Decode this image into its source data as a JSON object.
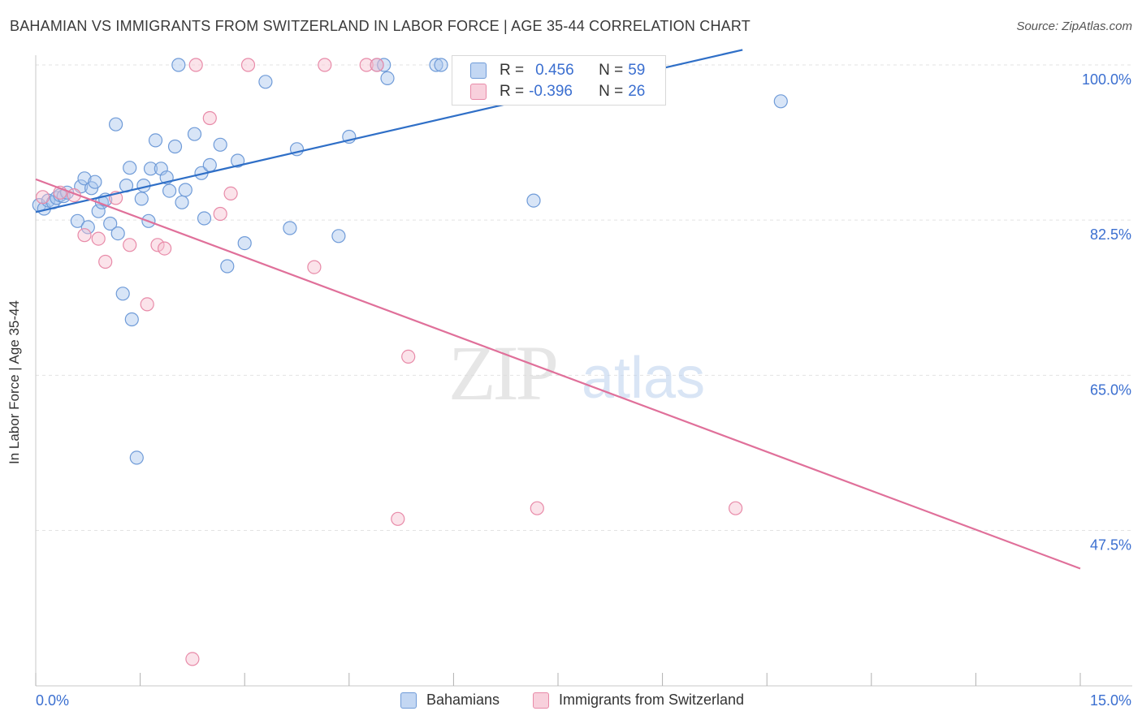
{
  "title": "BAHAMIAN VS IMMIGRANTS FROM SWITZERLAND IN LABOR FORCE | AGE 35-44 CORRELATION CHART",
  "source": "Source: ZipAtlas.com",
  "watermark": {
    "zip": "ZIP",
    "atlas": "atlas"
  },
  "stats": {
    "series1": {
      "r_label": "R =",
      "r_value": "0.456",
      "n_label": "N =",
      "n_value": "59"
    },
    "series2": {
      "r_label": "R =",
      "r_value": "-0.396",
      "n_label": "N =",
      "n_value": "26"
    }
  },
  "colors": {
    "blue_fill": "#a9c6ee",
    "blue_stroke": "#6f9bd8",
    "blue_line": "#2f6fc7",
    "pink_fill": "#f6c0d0",
    "pink_stroke": "#e88aa8",
    "pink_line": "#e0709a",
    "axis_text": "#3b6fd0",
    "grid": "#e3e3e3"
  },
  "chart_data": {
    "type": "scatter",
    "title": "BAHAMIAN VS IMMIGRANTS FROM SWITZERLAND IN LABOR FORCE | AGE 35-44 CORRELATION CHART",
    "xlabel": "",
    "ylabel": "In Labor Force | Age 35-44",
    "xlim": [
      0,
      15
    ],
    "ylim": [
      31.7,
      101.7
    ],
    "x_tick_labels": [
      "0.0%",
      "15.0%"
    ],
    "y_ticks": [
      47.5,
      65.0,
      82.5,
      100.0
    ],
    "y_tick_labels": [
      "47.5%",
      "65.0%",
      "82.5%",
      "100.0%"
    ],
    "grid": true,
    "legend_position": "bottom-center",
    "series": [
      {
        "name": "Bahamians",
        "color": "#6f9bd8",
        "trend": {
          "x": [
            0.0,
            10.15
          ],
          "y": [
            83.4,
            101.7
          ]
        },
        "points": [
          [
            0.05,
            84.2
          ],
          [
            0.12,
            83.8
          ],
          [
            0.18,
            84.7
          ],
          [
            0.25,
            84.5
          ],
          [
            0.3,
            85.0
          ],
          [
            0.35,
            85.3
          ],
          [
            0.4,
            85.2
          ],
          [
            0.45,
            85.6
          ],
          [
            0.6,
            82.4
          ],
          [
            0.65,
            86.3
          ],
          [
            0.7,
            87.2
          ],
          [
            0.75,
            81.7
          ],
          [
            0.8,
            86.1
          ],
          [
            0.85,
            86.8
          ],
          [
            0.9,
            83.5
          ],
          [
            0.95,
            84.5
          ],
          [
            1.0,
            84.8
          ],
          [
            1.07,
            82.1
          ],
          [
            1.15,
            93.3
          ],
          [
            1.18,
            81.0
          ],
          [
            1.25,
            74.2
          ],
          [
            1.3,
            86.4
          ],
          [
            1.35,
            88.4
          ],
          [
            1.38,
            71.3
          ],
          [
            1.45,
            55.7
          ],
          [
            1.52,
            84.9
          ],
          [
            1.55,
            86.4
          ],
          [
            1.62,
            82.4
          ],
          [
            1.65,
            88.3
          ],
          [
            1.72,
            91.5
          ],
          [
            1.8,
            88.3
          ],
          [
            1.88,
            87.3
          ],
          [
            1.92,
            85.8
          ],
          [
            2.0,
            90.8
          ],
          [
            2.05,
            100.0
          ],
          [
            2.1,
            84.5
          ],
          [
            2.15,
            85.9
          ],
          [
            2.28,
            92.2
          ],
          [
            2.38,
            87.8
          ],
          [
            2.42,
            82.7
          ],
          [
            2.5,
            88.7
          ],
          [
            2.65,
            91.0
          ],
          [
            2.75,
            77.3
          ],
          [
            2.9,
            89.2
          ],
          [
            3.0,
            79.9
          ],
          [
            3.3,
            98.1
          ],
          [
            3.65,
            81.6
          ],
          [
            3.75,
            90.5
          ],
          [
            4.35,
            80.7
          ],
          [
            4.5,
            91.9
          ],
          [
            4.9,
            100.0
          ],
          [
            5.0,
            100.0
          ],
          [
            5.05,
            98.5
          ],
          [
            5.75,
            100.0
          ],
          [
            5.82,
            100.0
          ],
          [
            7.15,
            84.7
          ],
          [
            10.7,
            95.9
          ]
        ]
      },
      {
        "name": "Immigrants from Switzerland",
        "color": "#e88aa8",
        "trend": {
          "x": [
            0.0,
            15.0
          ],
          "y": [
            87.1,
            43.2
          ]
        },
        "points": [
          [
            0.1,
            85.1
          ],
          [
            0.35,
            85.6
          ],
          [
            0.55,
            85.3
          ],
          [
            0.7,
            80.8
          ],
          [
            0.9,
            80.4
          ],
          [
            1.0,
            77.8
          ],
          [
            1.15,
            85.0
          ],
          [
            1.35,
            79.7
          ],
          [
            1.6,
            73.0
          ],
          [
            1.75,
            79.7
          ],
          [
            1.85,
            79.3
          ],
          [
            2.25,
            33.0
          ],
          [
            2.3,
            100.0
          ],
          [
            2.5,
            94.0
          ],
          [
            2.65,
            83.2
          ],
          [
            2.8,
            85.5
          ],
          [
            3.05,
            100.0
          ],
          [
            4.0,
            77.2
          ],
          [
            4.15,
            100.0
          ],
          [
            4.75,
            100.0
          ],
          [
            4.9,
            100.0
          ],
          [
            5.2,
            48.8
          ],
          [
            5.35,
            67.1
          ],
          [
            7.2,
            50.0
          ],
          [
            10.05,
            50.0
          ]
        ]
      }
    ]
  },
  "legend": {
    "items": [
      "Bahamians",
      "Immigrants from Switzerland"
    ]
  }
}
